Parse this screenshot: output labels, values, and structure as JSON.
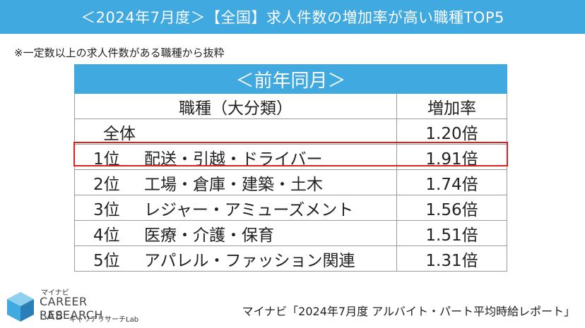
{
  "banner": {
    "title": "＜2024年7月度＞【全国】求人件数の増加率が高い職種TOP5"
  },
  "note": "※一定数以上の求人件数がある職種から抜粋",
  "table": {
    "period_header": "＜前年同月＞",
    "col_category": "職種（大分類）",
    "col_rate": "増加率",
    "rows": [
      {
        "rank": "",
        "name": "全体",
        "rate": "1.20倍"
      },
      {
        "rank": "1位",
        "name": "配送・引越・ドライバー",
        "rate": "1.91倍"
      },
      {
        "rank": "2位",
        "name": "工場・倉庫・建築・土木",
        "rate": "1.74倍"
      },
      {
        "rank": "3位",
        "name": "レジャー・アミューズメント",
        "rate": "1.56倍"
      },
      {
        "rank": "4位",
        "name": "医療・介護・保育",
        "rate": "1.51倍"
      },
      {
        "rank": "5位",
        "name": "アパレル・ファッション関連",
        "rate": "1.31倍"
      }
    ]
  },
  "logo": {
    "brand_small": "マイナビ",
    "brand_main": "CAREER RESEARCH",
    "brand_lab": "LAB",
    "brand_sub": "キャリアリサーチLab"
  },
  "source": "マイナビ「2024年7月度 アルバイト・パート平均時給レポート」",
  "colors": {
    "accent": "#3fa9e0",
    "highlight": "#e02020"
  }
}
